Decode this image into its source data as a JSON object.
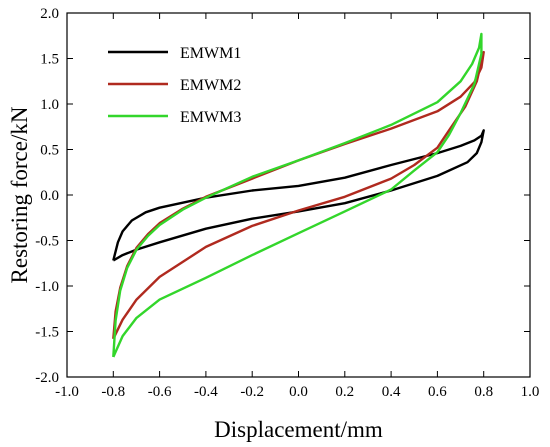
{
  "chart_data": {
    "type": "line",
    "title": "",
    "xlabel": "Displacement/mm",
    "ylabel": "Restoring force/kN",
    "xlim": [
      -1.0,
      1.0
    ],
    "ylim": [
      -2.0,
      2.0
    ],
    "xticks": [
      "-1.0",
      "-0.8",
      "-0.6",
      "-0.4",
      "-0.2",
      "0.0",
      "0.2",
      "0.4",
      "0.6",
      "0.8",
      "1.0"
    ],
    "yticks": [
      "-2.0",
      "-1.5",
      "-1.0",
      "-0.5",
      "0.0",
      "0.5",
      "1.0",
      "1.5",
      "2.0"
    ],
    "grid": false,
    "legend_position": "top-left",
    "series": [
      {
        "name": "EMWM1",
        "color": "#000000",
        "x": [
          -0.8,
          -0.79,
          -0.78,
          -0.76,
          -0.72,
          -0.66,
          -0.6,
          -0.4,
          -0.2,
          0.0,
          0.2,
          0.4,
          0.6,
          0.7,
          0.76,
          0.79,
          0.8,
          0.79,
          0.77,
          0.73,
          0.6,
          0.4,
          0.2,
          0.0,
          -0.2,
          -0.4,
          -0.6,
          -0.7,
          -0.76,
          -0.8
        ],
        "y": [
          -0.72,
          -0.62,
          -0.52,
          -0.4,
          -0.28,
          -0.19,
          -0.14,
          -0.03,
          0.05,
          0.1,
          0.19,
          0.33,
          0.46,
          0.54,
          0.6,
          0.65,
          0.71,
          0.58,
          0.46,
          0.36,
          0.21,
          0.05,
          -0.09,
          -0.18,
          -0.26,
          -0.37,
          -0.52,
          -0.6,
          -0.66,
          -0.72
        ]
      },
      {
        "name": "EMWM2",
        "color": "#b02a1f",
        "x": [
          -0.8,
          -0.79,
          -0.77,
          -0.74,
          -0.7,
          -0.65,
          -0.6,
          -0.5,
          -0.4,
          -0.2,
          0.0,
          0.2,
          0.4,
          0.6,
          0.7,
          0.76,
          0.79,
          0.8,
          0.77,
          0.72,
          0.65,
          0.6,
          0.5,
          0.4,
          0.2,
          0.0,
          -0.2,
          -0.4,
          -0.6,
          -0.7,
          -0.76,
          -0.8
        ],
        "y": [
          -1.58,
          -1.28,
          -1.02,
          -0.78,
          -0.58,
          -0.43,
          -0.31,
          -0.15,
          -0.02,
          0.18,
          0.38,
          0.56,
          0.73,
          0.92,
          1.08,
          1.24,
          1.4,
          1.57,
          1.25,
          0.97,
          0.71,
          0.52,
          0.33,
          0.18,
          -0.02,
          -0.17,
          -0.34,
          -0.57,
          -0.9,
          -1.15,
          -1.37,
          -1.58
        ]
      },
      {
        "name": "EMWM3",
        "color": "#33d62b",
        "x": [
          -0.8,
          -0.79,
          -0.77,
          -0.74,
          -0.7,
          -0.65,
          -0.6,
          -0.5,
          -0.4,
          -0.2,
          0.0,
          0.2,
          0.4,
          0.6,
          0.7,
          0.75,
          0.78,
          0.79,
          0.79,
          0.76,
          0.7,
          0.65,
          0.6,
          0.5,
          0.4,
          0.2,
          0.0,
          -0.2,
          -0.4,
          -0.6,
          -0.7,
          -0.76,
          -0.8
        ],
        "y": [
          -1.78,
          -1.38,
          -1.05,
          -0.8,
          -0.6,
          -0.45,
          -0.33,
          -0.16,
          -0.03,
          0.2,
          0.38,
          0.57,
          0.77,
          1.02,
          1.25,
          1.44,
          1.62,
          1.77,
          1.55,
          1.22,
          0.9,
          0.66,
          0.47,
          0.27,
          0.06,
          -0.18,
          -0.42,
          -0.66,
          -0.91,
          -1.15,
          -1.35,
          -1.55,
          -1.78
        ]
      }
    ]
  }
}
